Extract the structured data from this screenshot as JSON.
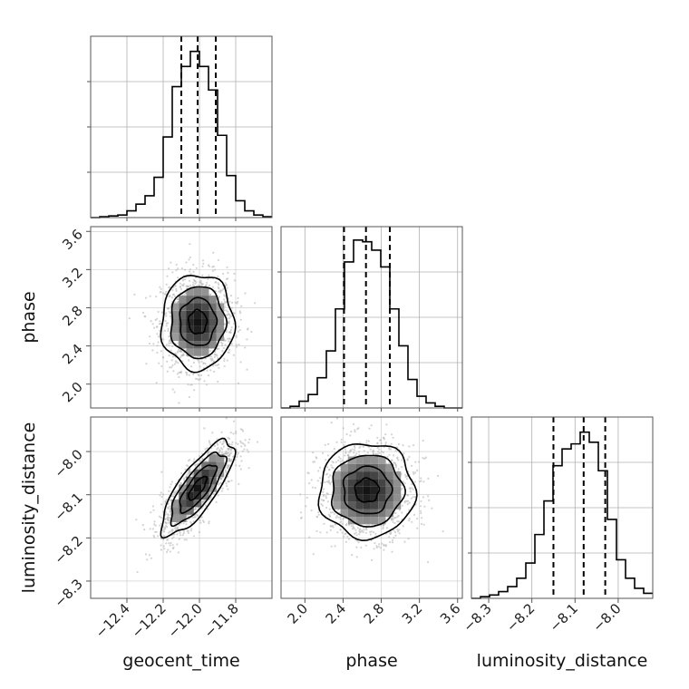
{
  "chart_data": {
    "type": "corner",
    "parameters": [
      "geocent_time",
      "phase",
      "luminosity_distance"
    ],
    "axis_labels": {
      "geocent_time": "geocent_time",
      "phase": "phase",
      "luminosity_distance": "luminosity_distance"
    },
    "ranges": {
      "geocent_time": [
        -12.6,
        -11.6
      ],
      "phase": [
        1.75,
        3.65
      ],
      "luminosity_distance": [
        -8.34,
        -7.92
      ]
    },
    "ticks": {
      "geocent_time": [
        -12.4,
        -12.2,
        -12.0,
        -11.8
      ],
      "phase_y": [
        2.0,
        2.4,
        2.8,
        3.2,
        3.6
      ],
      "phase_x": [
        2.0,
        2.4,
        2.8,
        3.2,
        3.6
      ],
      "luminosity_distance_y": [
        -8.0,
        -8.1,
        -8.2,
        -8.3
      ],
      "luminosity_distance_x": [
        -8.3,
        -8.2,
        -8.1,
        -8.0
      ]
    },
    "tick_labels": {
      "geocent_time": [
        "−12.4",
        "−12.2",
        "−12.0",
        "−11.8"
      ],
      "phase_y": [
        "2.0",
        "2.4",
        "2.8",
        "3.2",
        "3.6"
      ],
      "phase_x": [
        "2.0",
        "2.4",
        "2.8",
        "3.2",
        "3.6"
      ],
      "luminosity_distance_y": [
        "−8.0",
        "−8.1",
        "−8.2",
        "−8.3"
      ],
      "luminosity_distance_x": [
        "−8.3",
        "−8.2",
        "−8.1",
        "−8.0"
      ]
    },
    "histograms": {
      "geocent_time": {
        "edges": [
          -12.6,
          -12.55,
          -12.5,
          -12.45,
          -12.4,
          -12.35,
          -12.3,
          -12.25,
          -12.2,
          -12.15,
          -12.1,
          -12.05,
          -12.0,
          -11.95,
          -11.9,
          -11.85,
          -11.8,
          -11.75,
          -11.7,
          -11.65,
          -11.6
        ],
        "values": [
          0.0,
          0.005,
          0.01,
          0.015,
          0.04,
          0.08,
          0.13,
          0.24,
          0.48,
          0.78,
          0.9,
          0.99,
          0.9,
          0.76,
          0.49,
          0.25,
          0.1,
          0.04,
          0.015,
          0.005
        ],
        "quantiles": [
          -12.1,
          -12.01,
          -11.91
        ]
      },
      "phase": {
        "edges": [
          1.75,
          1.845,
          1.94,
          2.035,
          2.13,
          2.225,
          2.32,
          2.415,
          2.51,
          2.605,
          2.7,
          2.795,
          2.89,
          2.985,
          3.08,
          3.175,
          3.27,
          3.365,
          3.46,
          3.555,
          3.65
        ],
        "values": [
          0.0,
          0.01,
          0.04,
          0.08,
          0.18,
          0.34,
          0.59,
          0.87,
          1.0,
          0.99,
          0.94,
          0.84,
          0.59,
          0.37,
          0.17,
          0.07,
          0.03,
          0.01,
          0.0,
          0.0
        ],
        "quantiles": [
          2.41,
          2.64,
          2.89
        ]
      },
      "luminosity_distance": {
        "edges": [
          -8.34,
          -8.319,
          -8.298,
          -8.277,
          -8.256,
          -8.235,
          -8.214,
          -8.193,
          -8.172,
          -8.151,
          -8.13,
          -8.109,
          -8.088,
          -8.067,
          -8.046,
          -8.025,
          -8.004,
          -7.983,
          -7.962,
          -7.941,
          -7.92
        ],
        "values": [
          0.0,
          0.01,
          0.02,
          0.04,
          0.07,
          0.12,
          0.21,
          0.38,
          0.58,
          0.79,
          0.89,
          0.92,
          0.99,
          0.93,
          0.76,
          0.47,
          0.23,
          0.12,
          0.06,
          0.03
        ],
        "quantiles": [
          -8.15,
          -8.08,
          -8.03
        ]
      }
    },
    "joint_2d": [
      {
        "x": "geocent_time",
        "y": "phase",
        "center": [
          -12.01,
          2.65
        ],
        "sigma": [
          0.1,
          0.25
        ],
        "rho": 0.0
      },
      {
        "x": "geocent_time",
        "y": "luminosity_distance",
        "center": [
          -12.01,
          -8.085
        ],
        "sigma": [
          0.1,
          0.055
        ],
        "rho": 0.78
      },
      {
        "x": "phase",
        "y": "luminosity_distance",
        "center": [
          2.65,
          -8.09
        ],
        "sigma": [
          0.25,
          0.055
        ],
        "rho": 0.0
      }
    ],
    "contour_levels_sigma": [
      0.5,
      1.0,
      1.5,
      2.0
    ],
    "colors": {
      "line": "#000000",
      "scatter": "#b0b0b0",
      "grid": "#b0b0b0",
      "frame": "#555555"
    },
    "grid": true
  }
}
